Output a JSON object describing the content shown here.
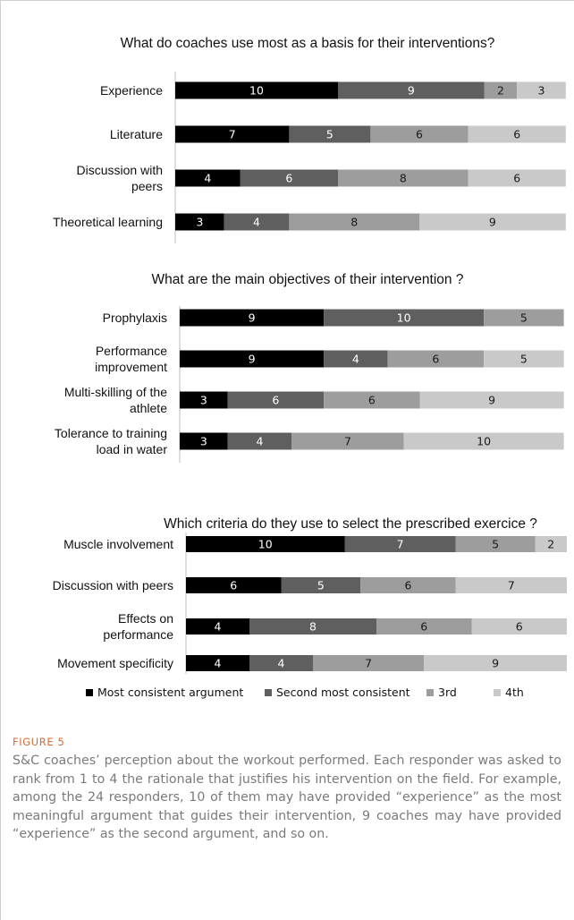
{
  "colors": {
    "series": [
      "#000000",
      "#5f5f5f",
      "#9d9d9d",
      "#c9c9c9"
    ],
    "label_on_dark": "#ffffff",
    "label_on_light": "#1a1a1a",
    "figure_label": "#d56b36",
    "caption": "#7a7a7a"
  },
  "legend": {
    "items": [
      "Most consistent argument",
      "Second most consistent",
      "3rd",
      "4th"
    ]
  },
  "chart_data": [
    {
      "type": "bar",
      "orientation": "horizontal",
      "stacked": true,
      "title": "What do coaches use most as a basis for their interventions?",
      "categories": [
        [
          "Experience"
        ],
        [
          "Literature"
        ],
        [
          "Discussion with",
          "peers"
        ],
        [
          "Theoretical learning"
        ]
      ],
      "series": [
        {
          "name": "Most consistent argument",
          "values": [
            10,
            7,
            4,
            3
          ]
        },
        {
          "name": "Second most consistent",
          "values": [
            9,
            5,
            6,
            4
          ]
        },
        {
          "name": "3rd",
          "values": [
            2,
            6,
            8,
            8
          ]
        },
        {
          "name": "4th",
          "values": [
            3,
            6,
            6,
            9
          ]
        }
      ],
      "xlim": [
        0,
        24
      ]
    },
    {
      "type": "bar",
      "orientation": "horizontal",
      "stacked": true,
      "title": "What are the main objectives of their intervention ?",
      "categories": [
        [
          "Prophylaxis"
        ],
        [
          "Performance",
          "improvement"
        ],
        [
          "Multi-skilling of the",
          "athlete"
        ],
        [
          "Tolerance to training",
          "load in water"
        ]
      ],
      "series": [
        {
          "name": "Most consistent argument",
          "values": [
            9,
            9,
            3,
            3
          ]
        },
        {
          "name": "Second most consistent",
          "values": [
            10,
            4,
            6,
            4
          ]
        },
        {
          "name": "3rd",
          "values": [
            5,
            6,
            6,
            7
          ]
        },
        {
          "name": "4th",
          "values": [
            0,
            5,
            9,
            10
          ]
        }
      ],
      "xlim": [
        0,
        24
      ]
    },
    {
      "type": "bar",
      "orientation": "horizontal",
      "stacked": true,
      "title": "Which criteria do they use to select the prescribed exercice ?",
      "categories": [
        [
          "Muscle involvement"
        ],
        [
          "Discussion with peers"
        ],
        [
          "Effects on",
          "performance"
        ],
        [
          "Movement specificity"
        ]
      ],
      "series": [
        {
          "name": "Most consistent argument",
          "values": [
            10,
            6,
            4,
            4
          ]
        },
        {
          "name": "Second most consistent",
          "values": [
            7,
            5,
            8,
            4
          ]
        },
        {
          "name": "3rd",
          "values": [
            5,
            6,
            6,
            7
          ]
        },
        {
          "name": "4th",
          "values": [
            2,
            7,
            6,
            9
          ]
        }
      ],
      "xlim": [
        0,
        24
      ]
    }
  ],
  "figure": {
    "label": "FIGURE 5",
    "caption": "S&C coaches’ perception about the workout performed. Each responder was asked to rank from 1 to 4 the rationale that justifies his intervention on the field. For example, among the 24 responders, 10 of them may have provided “experience” as the most meaningful argument that guides their intervention, 9 coaches may have provided “experience” as the second argument, and so on."
  }
}
